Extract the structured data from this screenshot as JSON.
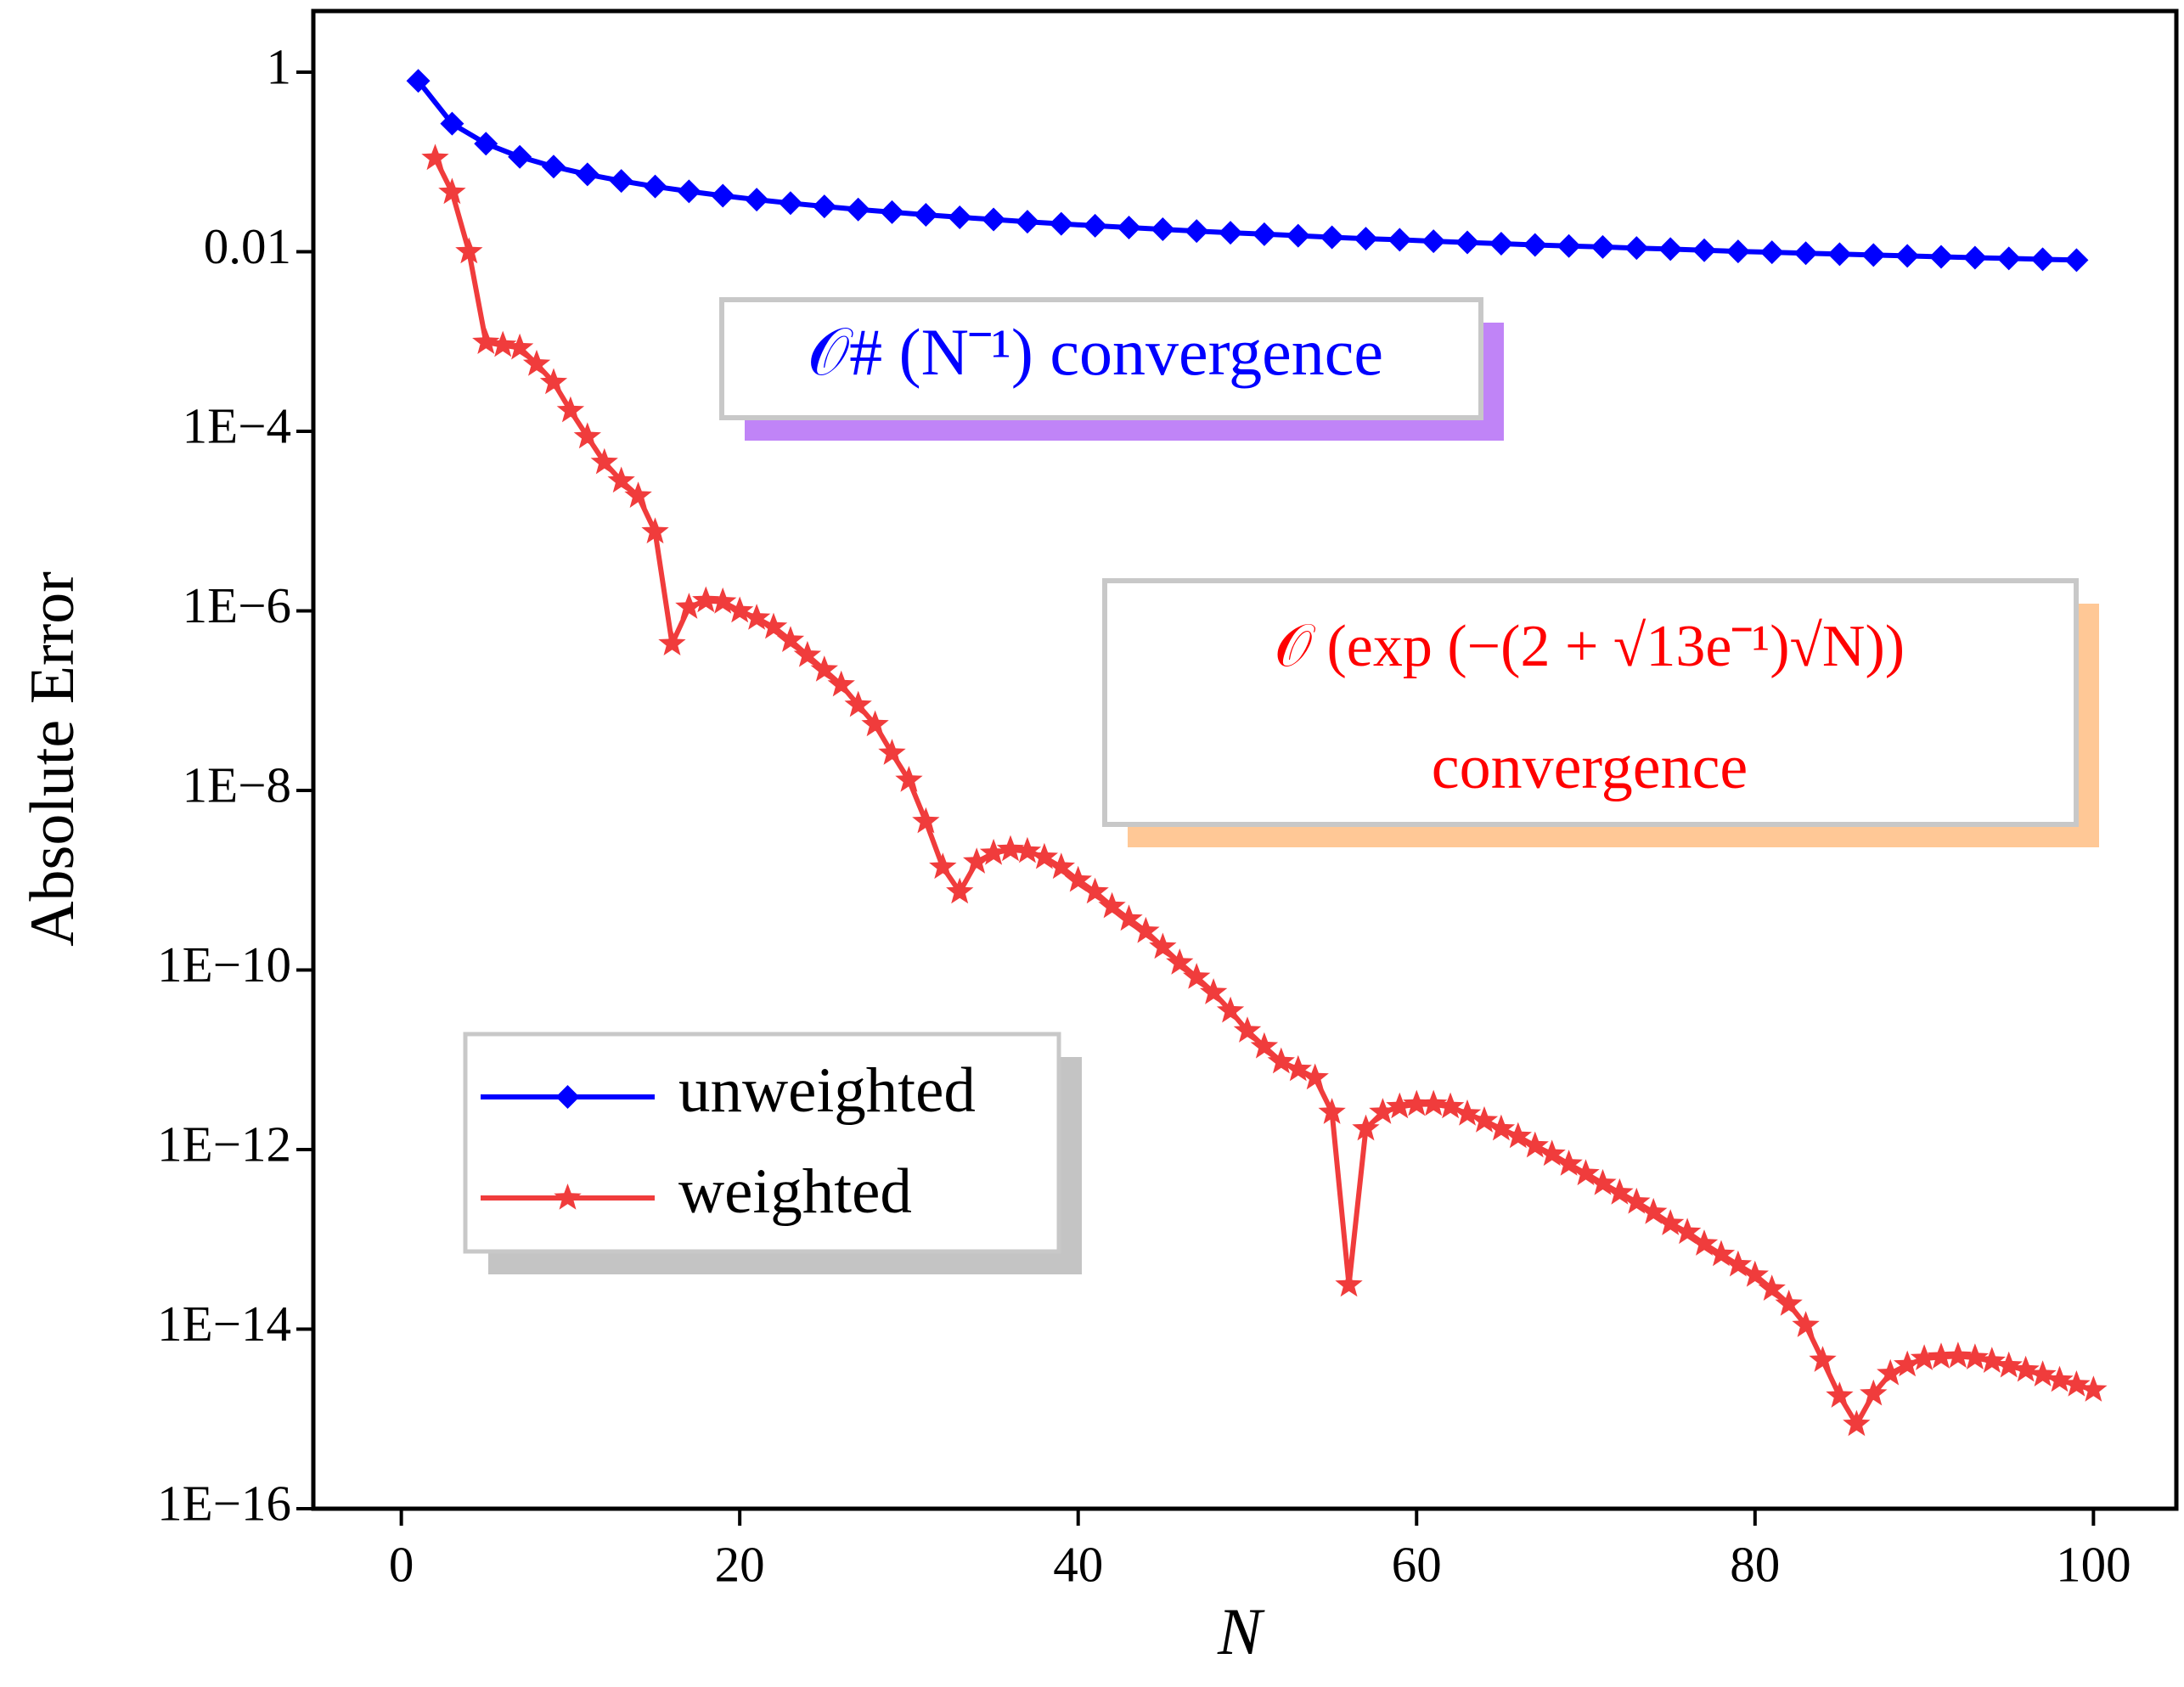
{
  "chart_data": {
    "type": "line",
    "xlabel": "N",
    "ylabel": "Absolute Error",
    "xlim": [
      -5.2,
      104.9
    ],
    "xticks": [
      0,
      20,
      40,
      60,
      80,
      100
    ],
    "ylim": [
      1e-16,
      4.8
    ],
    "yscale": "log",
    "yticks": [
      1,
      0.01,
      {
        "value": 0.0001,
        "label": "1E−4"
      },
      {
        "value": 1e-06,
        "label": "1E−6"
      },
      {
        "value": 1e-08,
        "label": "1E−8"
      },
      {
        "value": 1e-10,
        "label": "1E−10"
      },
      {
        "value": 1e-12,
        "label": "1E−12"
      },
      {
        "value": 1e-14,
        "label": "1E−14"
      },
      {
        "value": 1e-16,
        "label": "1E−16"
      }
    ],
    "legend_loc": "center left",
    "series": [
      {
        "name": "unweighted",
        "color": "#0000ff",
        "marker": "diamond",
        "x": [
          1,
          3,
          5,
          7,
          9,
          11,
          13,
          15,
          17,
          19,
          21,
          23,
          25,
          27,
          29,
          31,
          33,
          35,
          37,
          39,
          41,
          43,
          45,
          47,
          49,
          51,
          53,
          55,
          57,
          59,
          61,
          63,
          65,
          67,
          69,
          71,
          73,
          75,
          77,
          79,
          81,
          83,
          85,
          87,
          89,
          91,
          93,
          95,
          97,
          99
        ],
        "values": [
          0.8,
          0.267,
          0.16,
          0.114,
          0.0889,
          0.0727,
          0.0615,
          0.0533,
          0.0471,
          0.0421,
          0.0381,
          0.0348,
          0.032,
          0.0296,
          0.0276,
          0.0258,
          0.0242,
          0.0229,
          0.0216,
          0.0205,
          0.0195,
          0.0186,
          0.0178,
          0.017,
          0.0163,
          0.0157,
          0.0151,
          0.0145,
          0.014,
          0.0136,
          0.0131,
          0.0127,
          0.0123,
          0.0119,
          0.0116,
          0.0113,
          0.011,
          0.0107,
          0.0104,
          0.0101,
          0.00988,
          0.00964,
          0.00941,
          0.0092,
          0.00899,
          0.00879,
          0.0086,
          0.00842,
          0.00825,
          0.00808
        ]
      },
      {
        "name": "weighted",
        "color": "#f03c3c",
        "marker": "star",
        "x": [
          2,
          3,
          4,
          5,
          6,
          7,
          8,
          9,
          10,
          11,
          12,
          13,
          14,
          15,
          16,
          17,
          18,
          19,
          20,
          21,
          22,
          23,
          24,
          25,
          26,
          27,
          28,
          29,
          30,
          31,
          32,
          33,
          34,
          35,
          36,
          37,
          38,
          39,
          40,
          41,
          42,
          43,
          44,
          45,
          46,
          47,
          48,
          49,
          50,
          51,
          52,
          53,
          54,
          55,
          56,
          57,
          58,
          59,
          60,
          61,
          62,
          63,
          64,
          65,
          66,
          67,
          68,
          69,
          70,
          71,
          72,
          73,
          74,
          75,
          76,
          77,
          78,
          79,
          80,
          81,
          82,
          83,
          84,
          85,
          86,
          87,
          88,
          89,
          90,
          91,
          92,
          93,
          94,
          95,
          96,
          97,
          98,
          99,
          100
        ],
        "values": [
          0.11,
          0.046,
          0.01,
          0.00098,
          0.00091,
          0.00085,
          0.00056,
          0.00035,
          0.00017,
          8.7e-05,
          4.5e-05,
          2.8e-05,
          1.9e-05,
          7.6e-06,
          4.3e-07,
          1.1e-06,
          1.3e-06,
          1.26e-06,
          1e-06,
          8.3e-07,
          6.6e-07,
          4.7e-07,
          3.2e-07,
          2.2e-07,
          1.5e-07,
          8.9e-08,
          5.4e-08,
          2.6e-08,
          1.3e-08,
          4.5e-09,
          1.4e-09,
          7.4e-10,
          1.6e-09,
          2e-09,
          2.2e-09,
          2.1e-09,
          1.8e-09,
          1.4e-09,
          1e-09,
          7.4e-10,
          5.1e-10,
          3.7e-10,
          2.7e-10,
          1.8e-10,
          1.2e-10,
          8.3e-11,
          5.6e-11,
          3.5e-11,
          2.1e-11,
          1.4e-11,
          9.5e-12,
          7.8e-12,
          6.3e-12,
          2.6e-12,
          3.1e-14,
          1.7e-12,
          2.6e-12,
          3e-12,
          3.2e-12,
          3.2e-12,
          3e-12,
          2.5e-12,
          2.1e-12,
          1.7e-12,
          1.4e-12,
          1.1e-12,
          8.9e-13,
          6.9e-13,
          5.4e-13,
          4.2e-13,
          3.3e-13,
          2.6e-13,
          2e-13,
          1.5e-13,
          1.2e-13,
          8.9e-14,
          6.8e-14,
          5.2e-14,
          4e-14,
          2.8e-14,
          1.9e-14,
          1.1e-14,
          4.5e-15,
          1.8e-15,
          8.7e-16,
          1.9e-15,
          3.2e-15,
          4e-15,
          4.7e-15,
          4.9e-15,
          5e-15,
          4.8e-15,
          4.4e-15,
          3.9e-15,
          3.5e-15,
          3.1e-15,
          2.7e-15,
          2.4e-15,
          2.1e-15
        ]
      }
    ],
    "annotations": [
      {
        "lines": [
          "𝒪# (N⁻¹) convergence"
        ],
        "color": "#0000ff",
        "shadow": "#c084f7"
      },
      {
        "lines": [
          "𝒪 (exp (−(2 + √13e⁻¹)√N))",
          "convergence"
        ],
        "color": "#ff0000",
        "shadow": "#ffc896"
      }
    ]
  }
}
